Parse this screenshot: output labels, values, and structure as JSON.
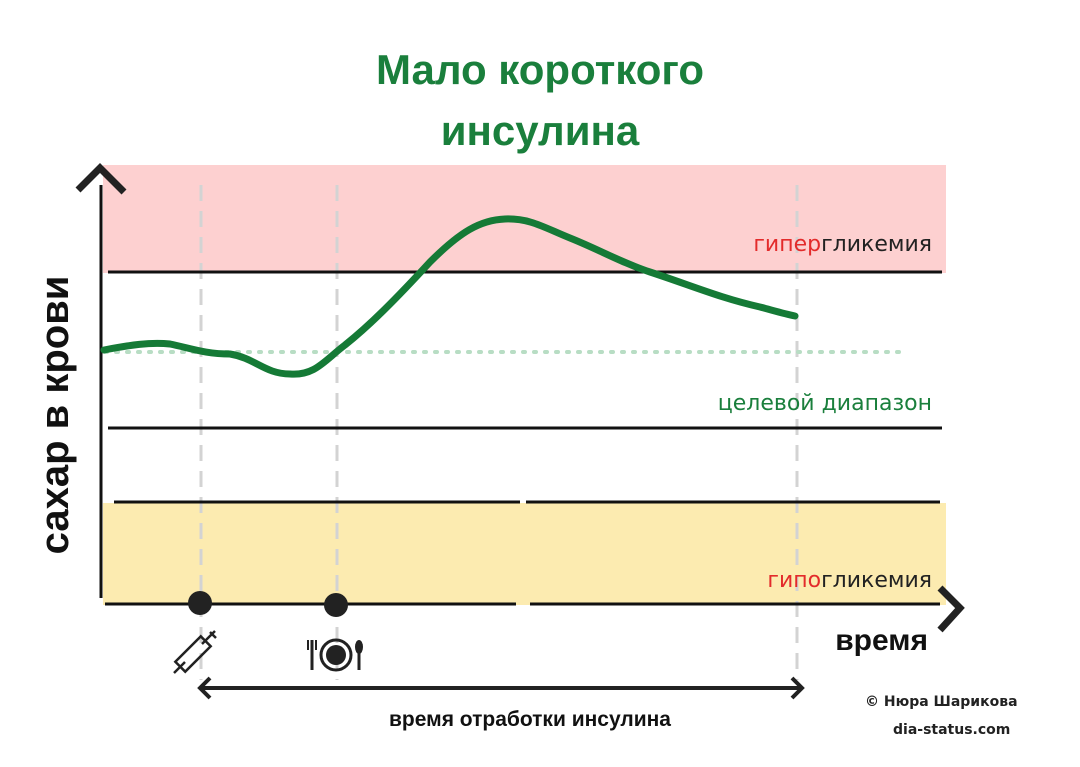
{
  "title": [
    "Мало короткого",
    "инсулина"
  ],
  "y_axis_label": "сахар в крови",
  "x_axis_label": "время",
  "zones": {
    "hyper": {
      "prefix": "гипер",
      "suffix": "гликемия"
    },
    "target": "целевой диапазон",
    "hypo": {
      "prefix": "гипо",
      "suffix": "гликемия"
    }
  },
  "duration_label": "время отработки инсулина",
  "credit": {
    "author": "© Нюра Шарикова",
    "site": "dia-status.com"
  }
}
